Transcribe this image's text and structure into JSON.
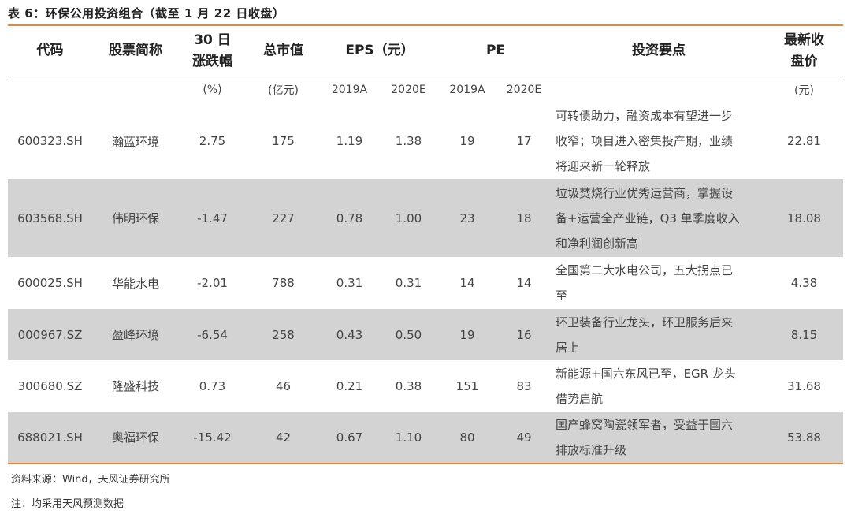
{
  "title": "表 6：环保公用投资组合（截至 1 月 22 日收盘）",
  "headers": {
    "code": "代码",
    "name": "股票简称",
    "change_line1": "30 日",
    "change_line2": "涨跌幅",
    "mktcap": "总市值",
    "eps": "EPS（元）",
    "pe": "PE",
    "points": "投资要点",
    "price_line1": "最新收",
    "price_line2": "盘价"
  },
  "units": {
    "change": "(%)",
    "mktcap": "(亿元)",
    "eps_2019": "2019A",
    "eps_2020": "2020E",
    "pe_2019": "2019A",
    "pe_2020": "2020E",
    "price": "(元)"
  },
  "rows": [
    {
      "code": "600323.SH",
      "name": "瀚蓝环境",
      "change": "2.75",
      "mktcap": "175",
      "eps2019": "1.19",
      "eps2020": "1.38",
      "pe2019": "19",
      "pe2020": "17",
      "points": "可转债助力，融资成本有望进一步\n收窄；项目进入密集投产期，业绩\n将迎来新一轮释放",
      "price": "22.81"
    },
    {
      "code": "603568.SH",
      "name": "伟明环保",
      "change": "-1.47",
      "mktcap": "227",
      "eps2019": "0.78",
      "eps2020": "1.00",
      "pe2019": "23",
      "pe2020": "18",
      "points": "垃圾焚烧行业优秀运营商，掌握设\n备+运营全产业链，Q3 单季度收入\n和净利润创新高",
      "price": "18.08"
    },
    {
      "code": "600025.SH",
      "name": "华能水电",
      "change": "-2.01",
      "mktcap": "788",
      "eps2019": "0.31",
      "eps2020": "0.31",
      "pe2019": "14",
      "pe2020": "14",
      "points": "全国第二大水电公司，五大拐点已\n至",
      "price": "4.38"
    },
    {
      "code": "000967.SZ",
      "name": "盈峰环境",
      "change": "-6.54",
      "mktcap": "258",
      "eps2019": "0.43",
      "eps2020": "0.50",
      "pe2019": "19",
      "pe2020": "16",
      "points": "环卫装备行业龙头，环卫服务后来\n居上",
      "price": "8.15"
    },
    {
      "code": "300680.SZ",
      "name": "隆盛科技",
      "change": "0.73",
      "mktcap": "46",
      "eps2019": "0.21",
      "eps2020": "0.38",
      "pe2019": "151",
      "pe2020": "83",
      "points": "新能源+国六东风已至，EGR 龙头\n借势启航",
      "price": "31.68"
    },
    {
      "code": "688021.SH",
      "name": "奥福环保",
      "change": "-15.42",
      "mktcap": "42",
      "eps2019": "0.67",
      "eps2020": "1.10",
      "pe2019": "80",
      "pe2020": "49",
      "points": "国产蜂窝陶瓷领军者，受益于国六\n排放标准升级",
      "price": "53.88"
    }
  ],
  "source": "资料来源：Wind，天风证券研究所",
  "note": "注：均采用天风预测数据"
}
